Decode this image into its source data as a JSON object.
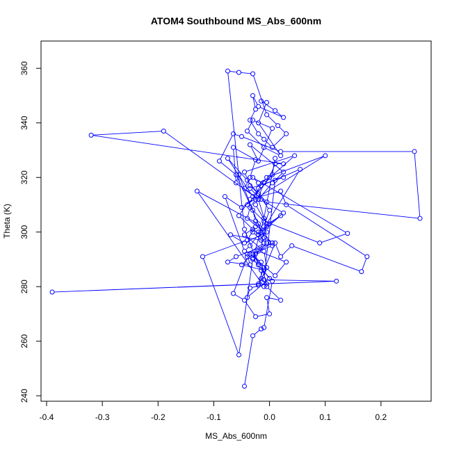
{
  "chart_data": {
    "type": "line",
    "title": "ATOM4 Southbound MS_Abs_600nm",
    "xlabel": "MS_Abs_600nm",
    "ylabel": "Theta (K)",
    "xlim": [
      -0.41,
      0.29
    ],
    "ylim": [
      238,
      370
    ],
    "x_ticks": [
      -0.4,
      -0.3,
      -0.2,
      -0.1,
      0.0,
      0.1,
      0.2
    ],
    "x_tick_labels": [
      "-0.4",
      "-0.3",
      "-0.2",
      "-0.1",
      "0.0",
      "0.1",
      "0.2"
    ],
    "y_ticks": [
      240,
      260,
      280,
      300,
      320,
      340,
      360
    ],
    "y_tick_labels": [
      "240",
      "260",
      "280",
      "300",
      "320",
      "340",
      "360"
    ],
    "grid": false,
    "series_color": "#0000ff",
    "marker": "open-circle",
    "series": [
      {
        "x": [
          -0.045,
          -0.03,
          -0.015,
          -0.01,
          0.005,
          -0.02,
          -0.045,
          -0.075,
          -0.055,
          -0.03,
          -0.005,
          0.015,
          0.03,
          0.005,
          -0.01,
          -0.02,
          -0.035,
          -0.025,
          -0.03,
          -0.02,
          0.025,
          0.01,
          -0.015,
          -0.005,
          -0.02,
          0.02,
          -0.01,
          -0.04,
          -0.03,
          0.005,
          -0.02,
          -0.035,
          0.025,
          0.005,
          -0.02,
          -0.005,
          -0.015,
          -0.07,
          -0.045,
          -0.005,
          -0.025,
          -0.03,
          -0.06,
          -0.09,
          -0.065,
          -0.05,
          0.02,
          0.26,
          0.27,
          -0.005,
          -0.035,
          -0.045,
          0.045,
          -0.01,
          -0.025,
          -0.005,
          0.055,
          -0.015,
          -0.03,
          -0.075,
          -0.04,
          -0.02,
          0.0,
          -0.01,
          0.02,
          -0.02,
          -0.035,
          -0.045,
          -0.08,
          -0.05,
          0.1,
          -0.005,
          -0.02,
          -0.025,
          -0.035,
          -0.04,
          -0.01,
          0.005,
          -0.03,
          -0.05,
          -0.01,
          0.01,
          0.02,
          0.04,
          0.165,
          0.175,
          0.03,
          0.02,
          -0.035,
          -0.055,
          -0.03,
          -0.01,
          0.005,
          -0.06,
          -0.075,
          -0.035,
          -0.04,
          -0.01,
          -0.02,
          0.0,
          0.025,
          -0.015,
          -0.035,
          0.025,
          0.01,
          -0.01,
          0.12,
          -0.39,
          -0.02,
          -0.01,
          -0.04,
          -0.065,
          -0.045,
          -0.025,
          0.0,
          -0.005,
          0.02,
          -0.005,
          -0.015,
          -0.035,
          0.01,
          0.03,
          -0.02,
          0.005,
          -0.015,
          -0.055,
          -0.06,
          -0.065,
          -0.025,
          -0.035,
          -0.045,
          -0.02,
          -0.19,
          -0.32,
          0.025,
          0.01,
          0.0,
          -0.02,
          -0.03,
          0.14,
          0.09,
          -0.01,
          -0.04,
          0.005,
          0.01,
          -0.01,
          -0.03,
          -0.055,
          -0.12,
          -0.04,
          -0.025,
          -0.045,
          -0.01,
          -0.005,
          -0.02,
          -0.01,
          -0.13,
          -0.02,
          -0.005,
          -0.03,
          -0.015,
          -0.015,
          -0.005,
          -0.035,
          -0.04,
          0.0,
          -0.02,
          -0.025,
          -0.01,
          -0.03
        ],
        "y": [
          243.5,
          262,
          264.5,
          265,
          282,
          288,
          301,
          359,
          358.5,
          358,
          343,
          339,
          336,
          331,
          334,
          336,
          341,
          345,
          350,
          346,
          342,
          344.5,
          348,
          347.5,
          340,
          328,
          331,
          337,
          341,
          338,
          326,
          332,
          322,
          318,
          312,
          302,
          297,
          299,
          296,
          300,
          304,
          308,
          321,
          326,
          336,
          335,
          329.5,
          329.5,
          305,
          311,
          317,
          322,
          328,
          318,
          310,
          303,
          323,
          317,
          313,
          327,
          319,
          314,
          308,
          302,
          306,
          299,
          295,
          293,
          313,
          309,
          328,
          320,
          316,
          312,
          309,
          305,
          300,
          295,
          292,
          288,
          286,
          296,
          291,
          295,
          285.5,
          291,
          310,
          315,
          312,
          306,
          301,
          298,
          296,
          291,
          289,
          288,
          292,
          296,
          300,
          303,
          307,
          312,
          316,
          320,
          319,
          282.5,
          282,
          278,
          281,
          287,
          291,
          277.5,
          275,
          269,
          270,
          276,
          275,
          280,
          289,
          292,
          284,
          289,
          293,
          296,
          300,
          321,
          318,
          331,
          326.5,
          320,
          316,
          312,
          337,
          335.5,
          325,
          325,
          320,
          318,
          320,
          299.5,
          296,
          304,
          310,
          321,
          327,
          305,
          290,
          255,
          291,
          297,
          302,
          299,
          293,
          287,
          280.5,
          280,
          315,
          303,
          296,
          290.5,
          286,
          283,
          281,
          279.5,
          276,
          283,
          288,
          292,
          296,
          300
        ]
      }
    ]
  }
}
